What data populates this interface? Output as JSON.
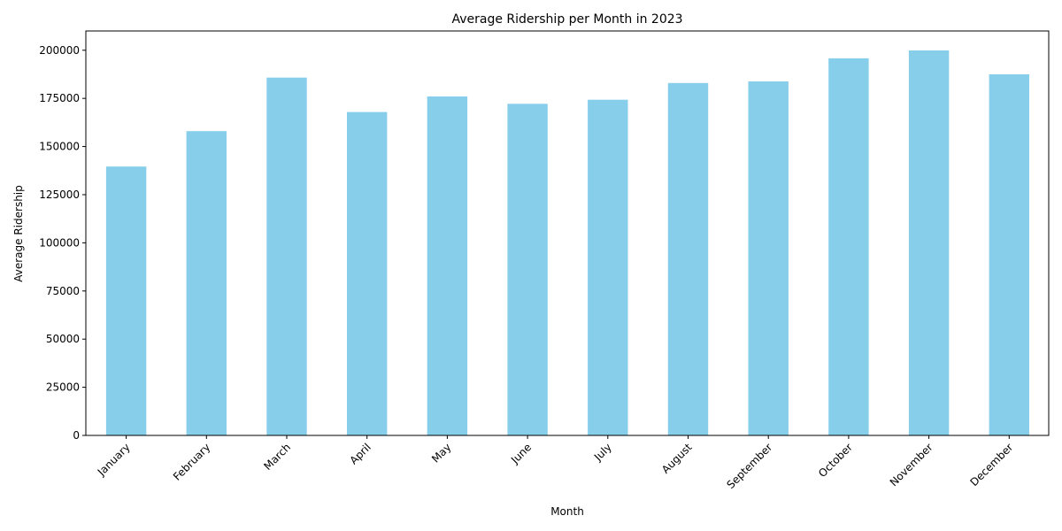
{
  "chart_data": {
    "type": "bar",
    "title": "Average Ridership per Month in 2023",
    "xlabel": "Month",
    "ylabel": "Average Ridership",
    "categories": [
      "January",
      "February",
      "March",
      "April",
      "May",
      "June",
      "July",
      "August",
      "September",
      "October",
      "November",
      "December"
    ],
    "values": [
      139600,
      158000,
      185800,
      167900,
      176000,
      172200,
      174300,
      183000,
      183800,
      195800,
      199900,
      187500
    ],
    "ylim": [
      0,
      210000
    ],
    "yticks": [
      0,
      25000,
      50000,
      75000,
      100000,
      125000,
      150000,
      175000,
      200000
    ],
    "bar_color": "#87ceeb",
    "grid": false,
    "legend": "none",
    "xtick_rotation": 45
  }
}
